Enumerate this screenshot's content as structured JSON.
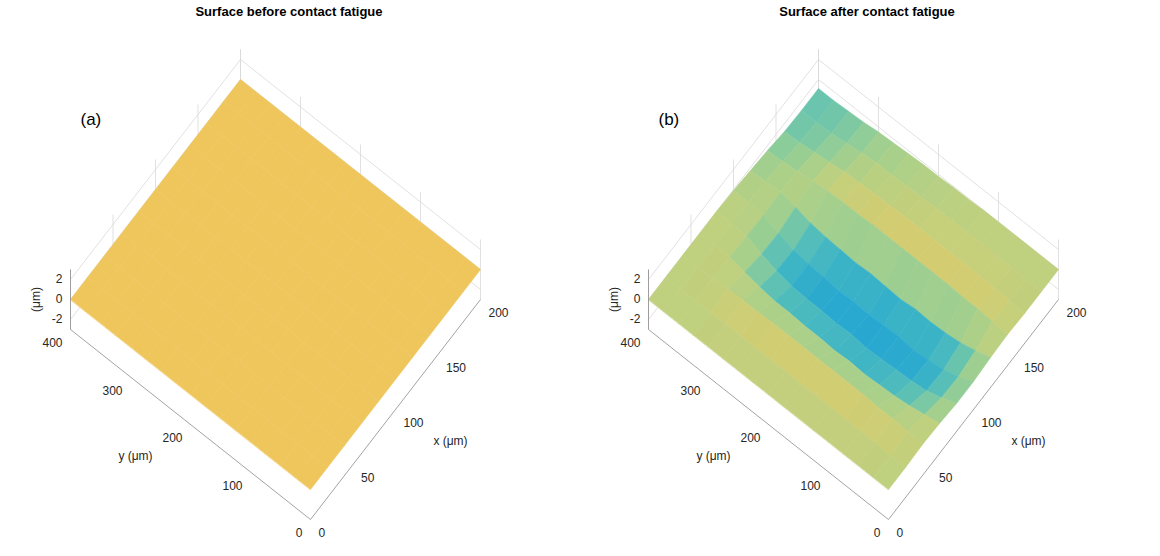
{
  "chart_data": [
    {
      "type": "surface",
      "title": "Surface before contact fatigue",
      "panel_label": "(a)",
      "x_label": "x (μm)",
      "y_label": "y (μm)",
      "z_label": "(μm)",
      "x": [
        0,
        20,
        40,
        60,
        80,
        100,
        120,
        140,
        160,
        180,
        200
      ],
      "y": [
        0,
        25,
        50,
        75,
        100,
        125,
        150,
        175,
        200,
        225,
        250,
        275,
        300,
        325,
        350,
        375,
        400
      ],
      "z": [
        [
          0,
          0,
          0,
          0,
          0,
          0,
          0,
          0,
          0,
          0,
          0
        ],
        [
          0,
          0,
          0,
          0,
          0,
          0,
          0,
          0,
          0,
          0,
          0
        ],
        [
          0,
          0,
          0,
          0,
          0,
          0,
          0,
          0,
          0,
          0,
          0
        ],
        [
          0,
          0,
          0,
          0,
          0,
          0,
          0,
          0,
          0,
          0,
          0
        ],
        [
          0,
          0,
          0,
          0,
          0,
          0,
          0,
          0,
          0,
          0,
          0
        ],
        [
          0,
          0,
          0,
          0,
          0,
          0,
          0,
          0,
          0,
          0,
          0
        ],
        [
          0,
          0,
          0,
          0,
          0,
          0,
          0,
          0,
          0,
          0,
          0
        ],
        [
          0,
          0,
          0,
          0,
          0,
          0,
          0,
          0,
          0,
          0,
          0
        ],
        [
          0,
          0,
          0,
          0,
          0,
          0,
          0,
          0,
          0,
          0,
          0
        ],
        [
          0,
          0,
          0,
          0,
          0,
          0,
          0,
          0,
          0,
          0,
          0
        ],
        [
          0,
          0,
          0,
          0,
          0,
          0,
          0,
          0,
          0,
          0,
          0
        ],
        [
          0,
          0,
          0,
          0,
          0,
          0,
          0,
          0,
          0,
          0,
          0
        ],
        [
          0,
          0,
          0,
          0,
          0,
          0,
          0,
          0,
          0,
          0,
          0
        ],
        [
          0,
          0,
          0,
          0,
          0,
          0,
          0,
          0,
          0,
          0,
          0
        ],
        [
          0,
          0,
          0,
          0,
          0,
          0,
          0,
          0,
          0,
          0,
          0
        ],
        [
          0,
          0,
          0,
          0,
          0,
          0,
          0,
          0,
          0,
          0,
          0
        ],
        [
          0,
          0,
          0,
          0,
          0,
          0,
          0,
          0,
          0,
          0,
          0
        ]
      ],
      "color_range": [
        -1,
        0.2
      ],
      "xlim": [
        0,
        200
      ],
      "ylim": [
        0,
        400
      ],
      "zlim": [
        -3,
        3
      ],
      "xticks": [
        0,
        50,
        100,
        150,
        200
      ],
      "yticks": [
        0,
        100,
        200,
        300,
        400
      ],
      "zticks": [
        -2,
        0,
        2
      ],
      "grid": true
    },
    {
      "type": "surface",
      "title": "Surface after contact fatigue",
      "panel_label": "(b)",
      "x_label": "x (μm)",
      "y_label": "y (μm)",
      "z_label": "(μm)",
      "x": [
        0,
        20,
        40,
        60,
        80,
        100,
        120,
        140,
        160,
        180,
        200
      ],
      "y": [
        0,
        25,
        50,
        75,
        100,
        125,
        150,
        175,
        200,
        225,
        250,
        275,
        300,
        325,
        350,
        375,
        400
      ],
      "z": [
        [
          0,
          0,
          0.1,
          0,
          -0.2,
          -0.2,
          0,
          0.1,
          0,
          0,
          0
        ],
        [
          0,
          0,
          0.2,
          -0.3,
          -0.8,
          -0.9,
          -0.5,
          0.2,
          0.1,
          0,
          0
        ],
        [
          0,
          0.1,
          0.3,
          -0.6,
          -1.3,
          -1.4,
          -0.9,
          0.3,
          0.2,
          0,
          0
        ],
        [
          0,
          0.1,
          0.3,
          -0.8,
          -1.5,
          -1.6,
          -1.1,
          0.3,
          0.2,
          0,
          0
        ],
        [
          0,
          0.1,
          0.4,
          -0.9,
          -1.6,
          -1.8,
          -1.2,
          0.4,
          0.2,
          0,
          0
        ],
        [
          0,
          0.1,
          0.4,
          -1.0,
          -1.7,
          -1.6,
          -1.1,
          0.4,
          0.2,
          0,
          0
        ],
        [
          0,
          0.1,
          0.4,
          -0.9,
          -1.8,
          -1.7,
          -1.3,
          0.4,
          0.2,
          0,
          -0.1
        ],
        [
          0,
          0.1,
          0.4,
          -1.0,
          -1.6,
          -1.8,
          -1.2,
          0.4,
          0.2,
          0,
          -0.1
        ],
        [
          0,
          0.1,
          0.4,
          -0.9,
          -1.7,
          -1.7,
          -1.1,
          0.4,
          0.2,
          -0.1,
          -0.2
        ],
        [
          0,
          0.1,
          0.4,
          -0.9,
          -1.6,
          -1.8,
          -1.2,
          0.4,
          0.1,
          -0.1,
          -0.2
        ],
        [
          0,
          0.1,
          0.4,
          -0.8,
          -1.6,
          -1.6,
          -1.1,
          0.3,
          0.1,
          -0.2,
          -0.3
        ],
        [
          0,
          0.1,
          0.3,
          -0.8,
          -1.5,
          -1.5,
          -1.0,
          0.3,
          0,
          -0.2,
          -0.4
        ],
        [
          0,
          0.1,
          0.3,
          -0.6,
          -1.2,
          -1.3,
          -0.8,
          0.2,
          -0.1,
          -0.4,
          -0.5
        ],
        [
          0,
          0,
          0.2,
          -0.3,
          -0.7,
          -0.8,
          -0.4,
          0,
          -0.3,
          -0.6,
          -0.7
        ],
        [
          0,
          0,
          0.1,
          0,
          -0.1,
          -0.2,
          -0.1,
          -0.2,
          -0.5,
          -0.8,
          -0.8
        ],
        [
          0,
          0,
          0,
          0,
          0,
          -0.1,
          -0.2,
          -0.4,
          -0.7,
          -0.9,
          -0.9
        ],
        [
          0,
          0,
          0,
          0,
          0,
          -0.1,
          -0.3,
          -0.5,
          -0.8,
          -0.9,
          -0.9
        ]
      ],
      "color_range": [
        -2,
        1.5
      ],
      "xlim": [
        0,
        200
      ],
      "ylim": [
        0,
        400
      ],
      "zlim": [
        -3,
        3
      ],
      "xticks": [
        0,
        50,
        100,
        150,
        200
      ],
      "yticks": [
        0,
        100,
        200,
        300,
        400
      ],
      "zticks": [
        -2,
        0,
        2
      ],
      "grid": true
    }
  ]
}
